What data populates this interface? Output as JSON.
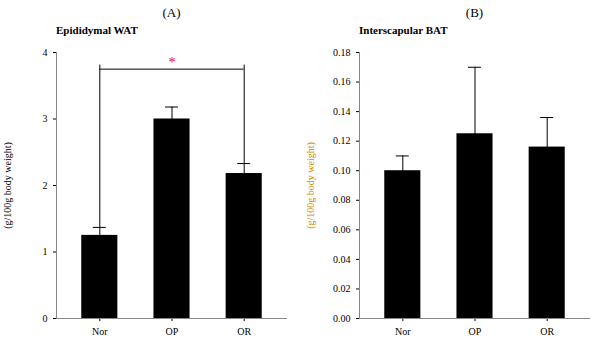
{
  "chart_data": [
    {
      "type": "bar",
      "title": "(A)",
      "subtitle": "Epididymal WAT",
      "categories": [
        "Nor",
        "OP",
        "OR"
      ],
      "values": [
        1.25,
        3.0,
        2.18
      ],
      "errors": [
        0.12,
        0.18,
        0.15
      ],
      "ylabel": "(g/100g body weight)",
      "ylim": [
        0,
        4
      ],
      "yticks": [
        0,
        1,
        2,
        3,
        4
      ],
      "color": "#000000",
      "annotations": [
        {
          "type": "bracket",
          "from": "Nor",
          "to": "OR",
          "y": 3.75,
          "text": "*",
          "color": "#ff0000"
        }
      ]
    },
    {
      "type": "bar",
      "title": "(B)",
      "subtitle": "Interscapular BAT",
      "categories": [
        "Nor",
        "OP",
        "OR"
      ],
      "values": [
        0.1,
        0.125,
        0.116
      ],
      "errors": [
        0.01,
        0.045,
        0.02
      ],
      "ylabel": "(g/100g body weight)",
      "ylabel_color": "#cc8800",
      "ylim": [
        0,
        0.18
      ],
      "yticks": [
        {
          "value": 0.0,
          "label": "0.00"
        },
        {
          "value": 0.02,
          "label": "0.02"
        },
        {
          "value": 0.04,
          "label": "0.04"
        },
        {
          "value": 0.06,
          "label": "0.06"
        },
        {
          "value": 0.08,
          "label": "0.08"
        },
        {
          "value": 0.1,
          "label": "0.10"
        },
        {
          "value": 0.12,
          "label": "0.12"
        },
        {
          "value": 0.14,
          "label": "0.14"
        },
        {
          "value": 0.16,
          "label": "0.16"
        },
        {
          "value": 0.18,
          "label": "0.18"
        }
      ],
      "color": "#000000"
    }
  ]
}
